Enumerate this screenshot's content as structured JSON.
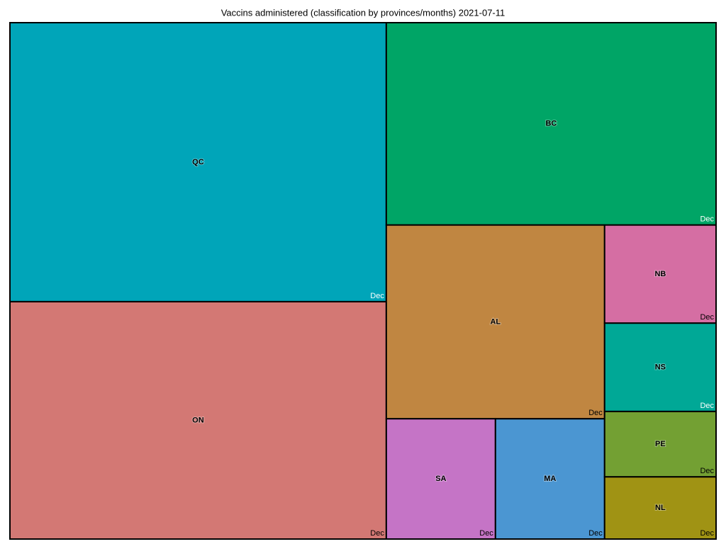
{
  "chart_data": {
    "type": "treemap",
    "title": "Vaccins administered (classification by provinces/months)  2021-07-11",
    "categories": [
      "QC",
      "ON",
      "BC",
      "AL",
      "SA",
      "MA",
      "NB",
      "NS",
      "PE",
      "NL"
    ],
    "values": [
      28.8,
      24.5,
      18.3,
      11.6,
      3.6,
      3.6,
      3.0,
      2.7,
      2.0,
      1.9
    ],
    "colors": [
      "#00a5b9",
      "#d37874",
      "#00a566",
      "#c08641",
      "#c574c6",
      "#4b96d2",
      "#d56ea3",
      "#00a896",
      "#73a033",
      "#a09314"
    ],
    "sublabels": [
      "Dec",
      "Dec",
      "Dec",
      "Dec",
      "Dec",
      "Dec",
      "Dec",
      "Dec",
      "Dec",
      "Dec"
    ],
    "sublabel_colors": [
      "#ffffff",
      "#000000",
      "#ffffff",
      "#000000",
      "#000000",
      "#000000",
      "#000000",
      "#ffffff",
      "#000000",
      "#000000"
    ]
  }
}
